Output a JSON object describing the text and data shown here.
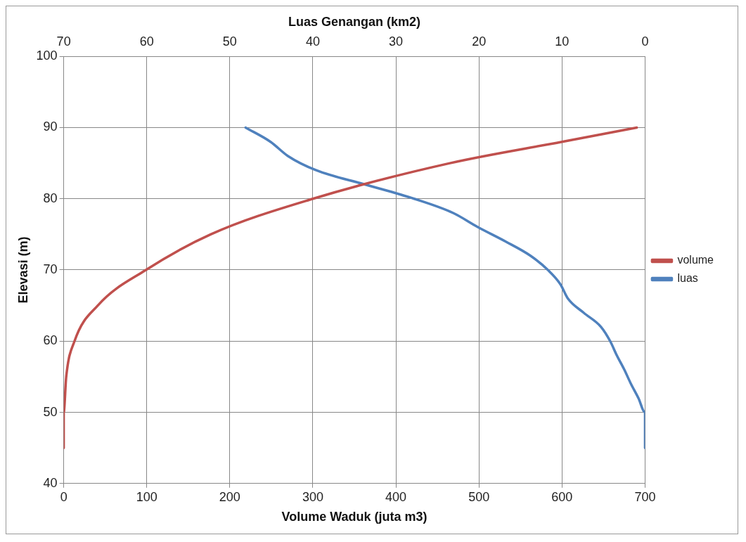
{
  "chart_data": {
    "type": "line",
    "xlabel": "Volume Waduk (juta m3)",
    "x2label": "Luas Genangan (km2)",
    "ylabel": "Elevasi (m)",
    "xlim": [
      0,
      700
    ],
    "xticks": [
      0,
      100,
      200,
      300,
      400,
      500,
      600,
      700
    ],
    "x2lim": [
      70,
      0
    ],
    "x2ticks": [
      70,
      60,
      50,
      40,
      30,
      20,
      10,
      0
    ],
    "ylim": [
      40,
      100
    ],
    "yticks": [
      40,
      50,
      60,
      70,
      80,
      90,
      100
    ],
    "grid": true,
    "legend": "right",
    "marker": "none",
    "series": [
      {
        "name": "volume",
        "color": "#c0504d",
        "x": [
          0,
          0,
          3,
          13,
          41,
          99,
          177,
          300,
          465,
          600,
          690
        ],
        "values": [
          45,
          50,
          55,
          60,
          65,
          70,
          75,
          80,
          85,
          88,
          90
        ]
      },
      {
        "name": "luas",
        "color": "#4f81bd",
        "axis": "x2",
        "x": [
          0,
          0,
          0.8,
          1.7,
          2.5,
          3.4,
          4.2,
          5.3,
          7.4,
          9.3,
          10.2,
          11.7,
          13.8,
          16.8,
          20.1,
          23.1,
          27.8,
          33.7,
          39.6,
          43,
          45.1,
          48.1
        ],
        "values": [
          45,
          50,
          52,
          54,
          56,
          58,
          60,
          62,
          64,
          66,
          68,
          70,
          72,
          74,
          76,
          78,
          80,
          82,
          84,
          86,
          88,
          90
        ]
      }
    ]
  }
}
